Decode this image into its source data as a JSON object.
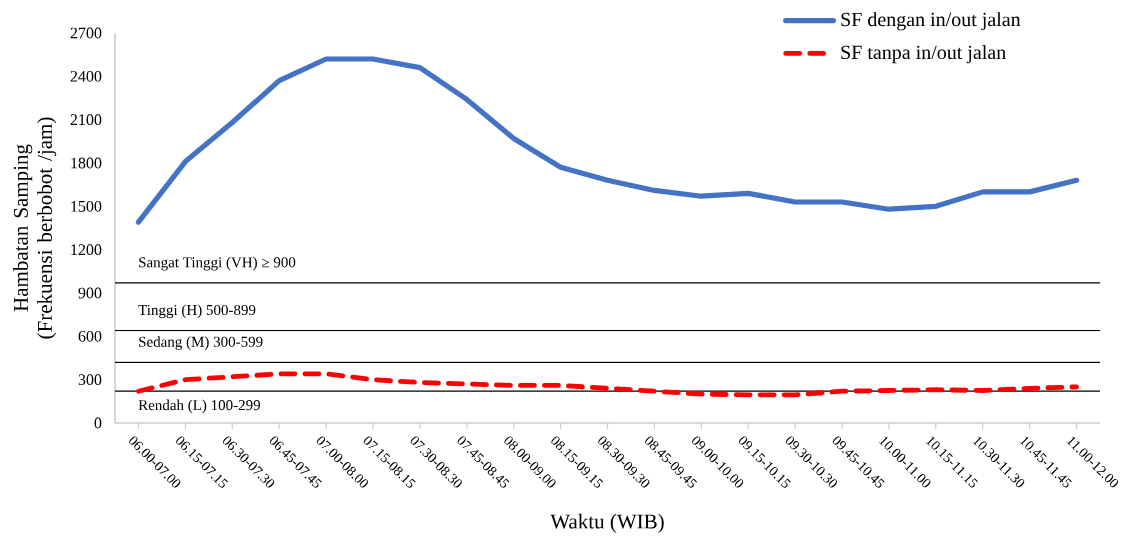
{
  "chart_data": {
    "type": "line",
    "xlabel": "Waktu (WIB)",
    "ylabel": "Hambatan Samping (Frekuensi berbobot /jam)",
    "categories": [
      "06.00-07.00",
      "06.15-07.15",
      "06.30-07.30",
      "06.45-07.45",
      "07.00-08.00",
      "07.15-08.15",
      "07.30-08.30",
      "07.45-08.45",
      "08.00-09.00",
      "08.15-09.15",
      "08.30-09.30",
      "08.45-09.45",
      "09.00-10.00",
      "09.15-10.15",
      "09.30-10.30",
      "09.45-10.45",
      "10.00-11.00",
      "10.15-11.15",
      "10.30-11.30",
      "10.45-11.45",
      "11.00-12.00"
    ],
    "series": [
      {
        "name": "SF dengan in/out jalan",
        "color": "#4472c4",
        "line_style": "solid",
        "values": [
          1390,
          1810,
          2080,
          2370,
          2520,
          2520,
          2460,
          2240,
          1970,
          1770,
          1680,
          1610,
          1570,
          1590,
          1530,
          1530,
          1480,
          1500,
          1600,
          1600,
          1680
        ]
      },
      {
        "name": "SF tanpa in/out jalan",
        "color": "#ff0000",
        "line_style": "dashed",
        "values": [
          220,
          300,
          320,
          340,
          340,
          300,
          280,
          270,
          260,
          260,
          240,
          220,
          200,
          195,
          195,
          220,
          225,
          230,
          225,
          240,
          250
        ]
      }
    ],
    "ylim": [
      0,
      2700
    ],
    "yticks": [
      0,
      300,
      600,
      900,
      1200,
      1500,
      1800,
      2100,
      2400,
      2700
    ],
    "ref_lines": [
      {
        "axis": "y",
        "value": 970,
        "label": "Sangat Tinggi (VH) ≥ 900",
        "color": "#000000"
      },
      {
        "axis": "y",
        "value": 640,
        "label": "Tinggi (H) 500-899",
        "color": "#000000"
      },
      {
        "axis": "y",
        "value": 420,
        "label": "Sedang (M) 300-599",
        "color": "#000000"
      },
      {
        "axis": "y",
        "value": 220,
        "label": "Rendah (L) 100-299",
        "color": "#000000"
      }
    ],
    "grid": false,
    "legend": "top right",
    "marker": "none"
  }
}
